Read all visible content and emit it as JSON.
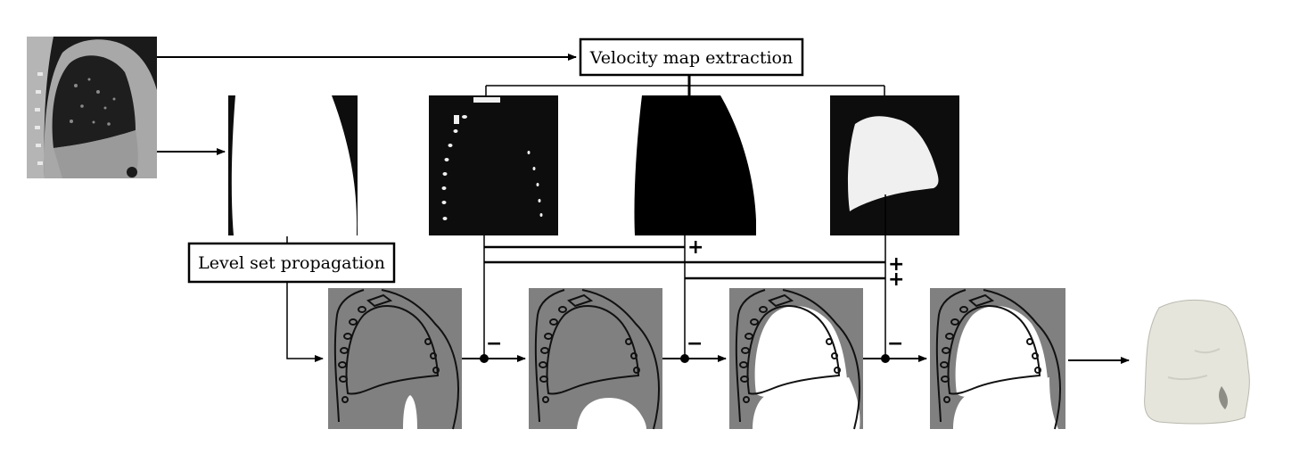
{
  "labels": {
    "velocity": "Velocity map extraction",
    "levelset": "Level set propagation"
  },
  "signs": {
    "plus_1": "+",
    "plus_2": "+",
    "plus_3": "+",
    "minus_1": "−",
    "minus_2": "−",
    "minus_3": "−"
  },
  "colors": {
    "line": "#000000",
    "ct_dark": "#1a1a1a",
    "map_dark": "#0d0d0d",
    "map_light": "#f0f0f0",
    "seg_gray": "#808080",
    "mesh": "#e6e5dc"
  },
  "icons": {
    "ct_scan": "ct-scan-image",
    "mask": "binary-mask-image",
    "mesh": "lung-mesh-render"
  }
}
